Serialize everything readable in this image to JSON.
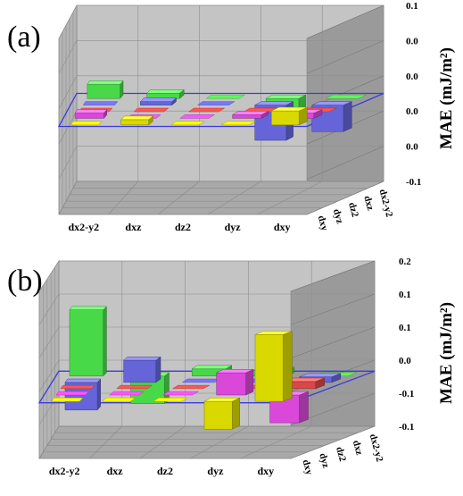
{
  "chart_data": [
    {
      "type": "bar3d",
      "panel_label": "(a)",
      "ylabel": "MAE (mJ/m²)",
      "yticks": [
        "0.1",
        "0.0",
        "0.0",
        "0.0",
        "0.0",
        "-0.1"
      ],
      "ylim": [
        -0.1,
        0.1
      ],
      "x_categories": [
        "dx2-y2",
        "dxz",
        "dz2",
        "dyz",
        "dxy"
      ],
      "z_categories": [
        "dxy",
        "dyz",
        "dz2",
        "dxz",
        "dx2-y2"
      ],
      "colors": [
        "#ffff00",
        "#ff55ff",
        "#ff5555",
        "#7777ff",
        "#55ff55"
      ],
      "matrix": [
        [
          0,
          0.006,
          0,
          0,
          0.016
        ],
        [
          0.006,
          0,
          0,
          0.004,
          0.006
        ],
        [
          0,
          0,
          0,
          0,
          0
        ],
        [
          0,
          0.004,
          0,
          -0.04,
          -0.03
        ],
        [
          0.016,
          0.006,
          0,
          -0.03,
          0
        ]
      ],
      "legend": "none"
    },
    {
      "type": "bar3d",
      "panel_label": "(b)",
      "ylabel": "MAE (mJ/m²)",
      "yticks": [
        "0.2",
        "0.1",
        "0.1",
        "0.0",
        "-0.1",
        "-0.1"
      ],
      "ylim": [
        -0.1,
        0.2
      ],
      "x_categories": [
        "dx2-y2",
        "dxz",
        "dz2",
        "dyz",
        "dxy"
      ],
      "z_categories": [
        "dxy",
        "dyz",
        "dz2",
        "dxz",
        "dx2-y2"
      ],
      "colors": [
        "#ffff00",
        "#ff55ff",
        "#ff5555",
        "#7777ff",
        "#55ff55"
      ],
      "matrix": [
        [
          0,
          0,
          0,
          -0.05,
          0.12
        ],
        [
          0,
          0,
          0,
          0.04,
          -0.05
        ],
        [
          0,
          0,
          0,
          0,
          0.013
        ],
        [
          -0.05,
          0.04,
          0,
          0,
          0.01
        ],
        [
          0.12,
          -0.05,
          0.013,
          0.01,
          0
        ]
      ],
      "legend": "none"
    }
  ]
}
